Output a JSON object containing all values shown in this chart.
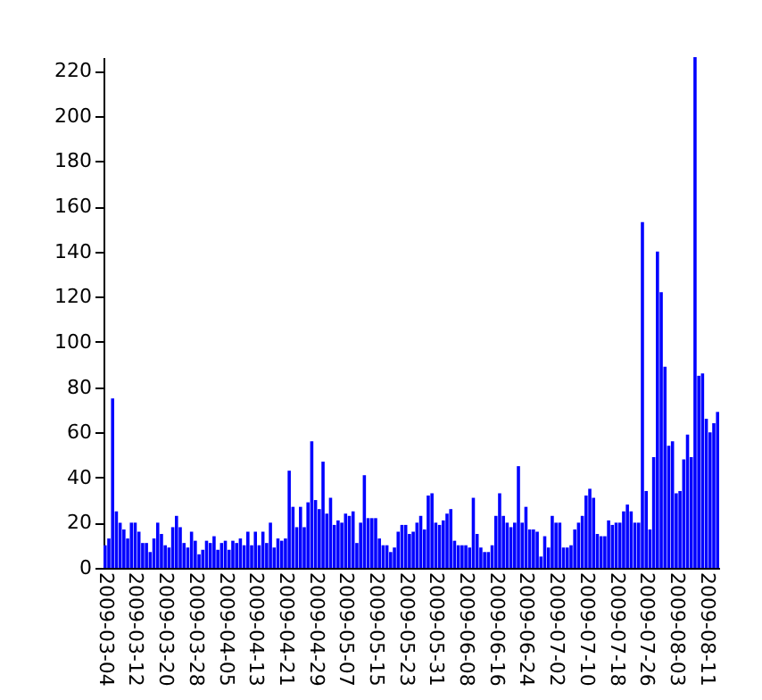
{
  "chart_data": {
    "type": "bar",
    "categories": [
      "2009-03-04",
      null,
      null,
      null,
      null,
      null,
      null,
      null,
      "2009-03-12",
      null,
      null,
      null,
      null,
      null,
      null,
      null,
      "2009-03-20",
      null,
      null,
      null,
      null,
      null,
      null,
      null,
      "2009-03-28",
      null,
      null,
      null,
      null,
      null,
      null,
      null,
      "2009-04-05",
      null,
      null,
      null,
      null,
      null,
      null,
      null,
      "2009-04-13",
      null,
      null,
      null,
      null,
      null,
      null,
      null,
      "2009-04-21",
      null,
      null,
      null,
      null,
      null,
      null,
      null,
      "2009-04-29",
      null,
      null,
      null,
      null,
      null,
      null,
      null,
      "2009-05-07",
      null,
      null,
      null,
      null,
      null,
      null,
      null,
      "2009-05-15",
      null,
      null,
      null,
      null,
      null,
      null,
      null,
      "2009-05-23",
      null,
      null,
      null,
      null,
      null,
      null,
      null,
      "2009-05-31",
      null,
      null,
      null,
      null,
      null,
      null,
      null,
      "2009-06-08",
      null,
      null,
      null,
      null,
      null,
      null,
      null,
      "2009-06-16",
      null,
      null,
      null,
      null,
      null,
      null,
      null,
      "2009-06-24",
      null,
      null,
      null,
      null,
      null,
      null,
      null,
      "2009-07-02",
      null,
      null,
      null,
      null,
      null,
      null,
      null,
      "2009-07-10",
      null,
      null,
      null,
      null,
      null,
      null,
      null,
      "2009-07-18",
      null,
      null,
      null,
      null,
      null,
      null,
      null,
      "2009-07-26",
      null,
      null,
      null,
      null,
      null,
      null,
      null,
      "2009-08-03",
      null,
      null,
      null,
      null,
      null,
      null,
      null,
      "2009-08-11",
      null,
      null,
      null
    ],
    "values": [
      10,
      13,
      75,
      25,
      20,
      17,
      13,
      20,
      20,
      16,
      11,
      11,
      7,
      13,
      20,
      15,
      10,
      9,
      18,
      23,
      18,
      11,
      9,
      16,
      12,
      6,
      8,
      12,
      11,
      14,
      8,
      11,
      12,
      8,
      12,
      11,
      13,
      10,
      16,
      10,
      16,
      10,
      16,
      11,
      20,
      9,
      13,
      12,
      13,
      43,
      27,
      18,
      27,
      18,
      29,
      56,
      30,
      26,
      47,
      24,
      31,
      19,
      21,
      20,
      24,
      23,
      25,
      11,
      20,
      41,
      22,
      22,
      22,
      13,
      10,
      10,
      7,
      9,
      16,
      19,
      19,
      15,
      16,
      20,
      23,
      17,
      32,
      33,
      20,
      19,
      21,
      24,
      26,
      12,
      10,
      10,
      10,
      9,
      31,
      15,
      9,
      7,
      7,
      10,
      23,
      33,
      23,
      20,
      18,
      20,
      45,
      20,
      27,
      17,
      17,
      16,
      5,
      14,
      9,
      23,
      20,
      20,
      9,
      9,
      10,
      17,
      20,
      23,
      32,
      35,
      31,
      15,
      14,
      14,
      21,
      19,
      20,
      20,
      25,
      28,
      25,
      20,
      20,
      153,
      34,
      17,
      49,
      140,
      122,
      89,
      54,
      56,
      33,
      34,
      48,
      59,
      49,
      226,
      85,
      86,
      66,
      60,
      64,
      69
    ],
    "color": "#0000ff",
    "ylim": [
      0,
      226
    ],
    "yticks": [
      0,
      20,
      40,
      60,
      80,
      100,
      120,
      140,
      160,
      180,
      200,
      220
    ],
    "grid": false
  }
}
